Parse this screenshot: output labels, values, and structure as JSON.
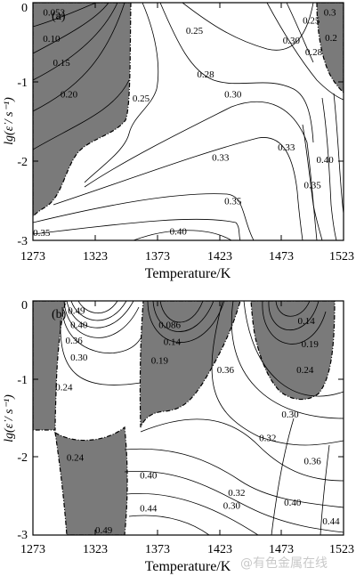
{
  "figure": {
    "watermark": "@有色金属在线",
    "colors": {
      "unstable_fill": "#7a7a7a",
      "contour": "#000000",
      "background": "#ffffff"
    }
  },
  "chart_data": [
    {
      "type": "contour",
      "panel_label": "(a)",
      "xlabel": "Temperature/K",
      "ylabel": "lg(ε̇ / s⁻¹)",
      "xlim": [
        1273,
        1523
      ],
      "ylim": [
        -3,
        0
      ],
      "xticks": [
        1273,
        1323,
        1373,
        1423,
        1473,
        1523
      ],
      "yticks": [
        0,
        -1,
        -2,
        -3
      ],
      "grid": false,
      "shaded_regions": "instability domains (dark grey)",
      "contour_labels": [
        {
          "text": "0.052",
          "T": 1290,
          "lg": -0.12
        },
        {
          "text": "0.10",
          "T": 1288,
          "lg": -0.45
        },
        {
          "text": "0.15",
          "T": 1296,
          "lg": -0.75
        },
        {
          "text": "0.20",
          "T": 1302,
          "lg": -1.15
        },
        {
          "text": "0.25",
          "T": 1403,
          "lg": -0.35
        },
        {
          "text": "0.28",
          "T": 1412,
          "lg": -0.9
        },
        {
          "text": "0.25",
          "T": 1360,
          "lg": -1.2
        },
        {
          "text": "0.30",
          "T": 1434,
          "lg": -1.15
        },
        {
          "text": "0.33",
          "T": 1424,
          "lg": -1.95
        },
        {
          "text": "0.35",
          "T": 1434,
          "lg": -2.5
        },
        {
          "text": "0.40",
          "T": 1390,
          "lg": -2.88
        },
        {
          "text": "0.35",
          "T": 1280,
          "lg": -2.9
        },
        {
          "text": "0.30",
          "T": 1481,
          "lg": -0.47
        },
        {
          "text": "0.28",
          "T": 1499,
          "lg": -0.62
        },
        {
          "text": "0.25",
          "T": 1497,
          "lg": -0.22
        },
        {
          "text": "0.3",
          "T": 1512,
          "lg": -0.12
        },
        {
          "text": "0.2",
          "T": 1513,
          "lg": -0.44
        },
        {
          "text": "0.33",
          "T": 1477,
          "lg": -1.82
        },
        {
          "text": "0.40",
          "T": 1508,
          "lg": -1.98
        },
        {
          "text": "0.35",
          "T": 1498,
          "lg": -2.3
        }
      ]
    },
    {
      "type": "contour",
      "panel_label": "(b)",
      "xlabel": "Temperature/K",
      "ylabel": "lg(ε̇ / s⁻¹)",
      "xlim": [
        1273,
        1523
      ],
      "ylim": [
        -3,
        0
      ],
      "xticks": [
        1273,
        1323,
        1373,
        1423,
        1473,
        1523
      ],
      "yticks": [
        0,
        -1,
        -2,
        -3
      ],
      "grid": false,
      "shaded_regions": "instability domains (dark grey)",
      "contour_labels": [
        {
          "text": "0.49",
          "T": 1308,
          "lg": -0.12
        },
        {
          "text": "0.40",
          "T": 1310,
          "lg": -0.3
        },
        {
          "text": "0.36",
          "T": 1306,
          "lg": -0.5
        },
        {
          "text": "0.30",
          "T": 1310,
          "lg": -0.72
        },
        {
          "text": "0.24",
          "T": 1298,
          "lg": -1.1
        },
        {
          "text": "0.086",
          "T": 1383,
          "lg": -0.3
        },
        {
          "text": "0.14",
          "T": 1385,
          "lg": -0.52
        },
        {
          "text": "0.19",
          "T": 1375,
          "lg": -0.76
        },
        {
          "text": "0.36",
          "T": 1428,
          "lg": -0.88
        },
        {
          "text": "0.14",
          "T": 1493,
          "lg": -0.25
        },
        {
          "text": "0.19",
          "T": 1496,
          "lg": -0.55
        },
        {
          "text": "0.24",
          "T": 1492,
          "lg": -0.88
        },
        {
          "text": "0.30",
          "T": 1480,
          "lg": -1.45
        },
        {
          "text": "0.32",
          "T": 1462,
          "lg": -1.75
        },
        {
          "text": "0.24",
          "T": 1307,
          "lg": -2.0
        },
        {
          "text": "0.40",
          "T": 1366,
          "lg": -2.23
        },
        {
          "text": "0.36",
          "T": 1498,
          "lg": -2.05
        },
        {
          "text": "0.44",
          "T": 1366,
          "lg": -2.65
        },
        {
          "text": "0.32",
          "T": 1437,
          "lg": -2.45
        },
        {
          "text": "0.30",
          "T": 1433,
          "lg": -2.62
        },
        {
          "text": "0.40",
          "T": 1482,
          "lg": -2.58
        },
        {
          "text": "0.44",
          "T": 1513,
          "lg": -2.82
        },
        {
          "text": "0.49",
          "T": 1330,
          "lg": -2.93
        }
      ]
    }
  ]
}
